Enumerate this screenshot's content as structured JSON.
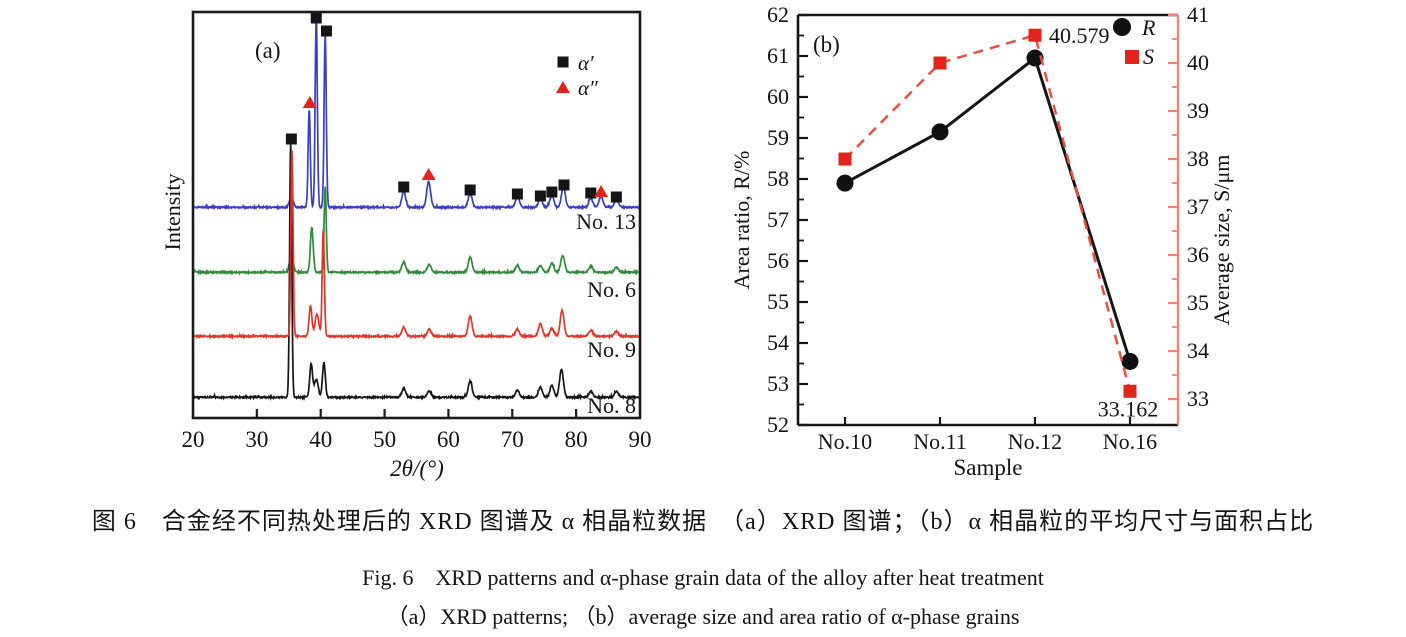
{
  "figure": {
    "caption_line1": "图 6　合金经不同热处理后的 XRD 图谱及 α 相晶粒数据　（a）XRD 图谱；（b）α 相晶粒的平均尺寸与面积占比",
    "caption_line2": "Fig. 6　XRD patterns and α-phase grain data of the alloy after heat treatment",
    "caption_line3": "（a）XRD patterns; （b）average size and area ratio of α-phase grains"
  },
  "chart_data": [
    {
      "panel": "a",
      "type": "line",
      "panel_label": "(a)",
      "xlabel": "2θ/(°)",
      "ylabel": "Intensity",
      "xlim": [
        20,
        90
      ],
      "xticks": [
        20,
        30,
        40,
        50,
        60,
        70,
        80,
        90
      ],
      "grid": false,
      "legend": {
        "position": "top-right",
        "entries": [
          {
            "label": "α′",
            "marker": "square",
            "color": "#151515"
          },
          {
            "label": "α″",
            "marker": "triangle",
            "color": "#e0251c"
          }
        ]
      },
      "series": [
        {
          "name": "No. 13",
          "color": "#3a3fbf",
          "peaks": [
            [
              35.4,
              10
            ],
            [
              38.2,
              98
            ],
            [
              39.3,
              190
            ],
            [
              40.7,
              172
            ],
            [
              53.0,
              16
            ],
            [
              56.9,
              26
            ],
            [
              63.4,
              14
            ],
            [
              70.8,
              11
            ],
            [
              74.4,
              9
            ],
            [
              76.2,
              12
            ],
            [
              78.0,
              21
            ],
            [
              82.3,
              9
            ],
            [
              83.9,
              11
            ],
            [
              86.3,
              8
            ]
          ]
        },
        {
          "name": "No. 6",
          "color": "#2e8b3a",
          "peaks": [
            [
              35.4,
              16
            ],
            [
              38.6,
              45
            ],
            [
              40.7,
              85
            ],
            [
              53.0,
              10
            ],
            [
              57.0,
              8
            ],
            [
              63.4,
              15
            ],
            [
              70.8,
              7
            ],
            [
              74.4,
              7
            ],
            [
              76.2,
              9
            ],
            [
              77.9,
              17
            ],
            [
              82.3,
              6
            ],
            [
              86.3,
              5
            ]
          ]
        },
        {
          "name": "No. 9",
          "color": "#e0352a",
          "peaks": [
            [
              35.5,
              187
            ],
            [
              38.4,
              30
            ],
            [
              39.4,
              22
            ],
            [
              40.4,
              107
            ],
            [
              53.0,
              9
            ],
            [
              57.0,
              7
            ],
            [
              63.4,
              20
            ],
            [
              70.8,
              7
            ],
            [
              74.4,
              13
            ],
            [
              76.2,
              8
            ],
            [
              77.8,
              26
            ],
            [
              82.3,
              6
            ],
            [
              86.3,
              5
            ]
          ]
        },
        {
          "name": "No. 8",
          "color": "#151515",
          "peaks": [
            [
              35.3,
              253
            ],
            [
              38.5,
              33
            ],
            [
              39.3,
              18
            ],
            [
              40.5,
              35
            ],
            [
              53.0,
              9
            ],
            [
              57.0,
              6
            ],
            [
              63.4,
              16
            ],
            [
              70.8,
              7
            ],
            [
              74.4,
              10
            ],
            [
              76.2,
              12
            ],
            [
              77.7,
              28
            ],
            [
              82.3,
              6
            ],
            [
              86.3,
              6
            ]
          ]
        }
      ],
      "peak_markers": [
        {
          "x": 35.4,
          "y": 139,
          "type": "square"
        },
        {
          "x": 38.3,
          "y": 103,
          "type": "triangle"
        },
        {
          "x": 39.3,
          "y": 18,
          "type": "square"
        },
        {
          "x": 40.9,
          "y": 31,
          "type": "square"
        },
        {
          "x": 53.0,
          "y": 187,
          "type": "square"
        },
        {
          "x": 56.9,
          "y": 175,
          "type": "triangle"
        },
        {
          "x": 63.4,
          "y": 190,
          "type": "square"
        },
        {
          "x": 70.8,
          "y": 194,
          "type": "square"
        },
        {
          "x": 74.4,
          "y": 196,
          "type": "square"
        },
        {
          "x": 76.2,
          "y": 192,
          "type": "square"
        },
        {
          "x": 78.1,
          "y": 185,
          "type": "square"
        },
        {
          "x": 82.3,
          "y": 193,
          "type": "square"
        },
        {
          "x": 83.9,
          "y": 192,
          "type": "triangle"
        },
        {
          "x": 86.3,
          "y": 197,
          "type": "square"
        }
      ]
    },
    {
      "panel": "b",
      "type": "line",
      "panel_label": "(b)",
      "xlabel": "Sample",
      "categories": [
        "No.10",
        "No.11",
        "No.12",
        "No.16"
      ],
      "left_axis": {
        "label": "Area ratio, R/%",
        "min": 52,
        "max": 62,
        "ticks": [
          52,
          53,
          54,
          55,
          56,
          57,
          58,
          59,
          60,
          61,
          62
        ],
        "minor_step": 0.5,
        "color": "#151515"
      },
      "right_axis": {
        "label": "Average size, S/μm",
        "min": 32.46,
        "max": 41,
        "ticks": [
          33,
          34,
          35,
          36,
          37,
          38,
          39,
          40,
          41
        ],
        "minor_step": 0.5,
        "color": "#ef8472"
      },
      "series": [
        {
          "name": "R",
          "axis": "left",
          "marker": "circle",
          "line": "solid",
          "color": "#151515",
          "marker_color": "#111111",
          "values": [
            57.9,
            59.15,
            60.95,
            53.55
          ]
        },
        {
          "name": "S",
          "axis": "right",
          "marker": "square",
          "line": "dashed",
          "color": "#e85043",
          "marker_color": "#e2241c",
          "values": [
            38.0,
            40.0,
            40.579,
            33.162
          ]
        }
      ],
      "annotations": [
        {
          "text": "40.579",
          "series": "S",
          "category": "No.12",
          "placement": "right"
        },
        {
          "text": "33.162",
          "series": "S",
          "category": "No.16",
          "placement": "below"
        }
      ],
      "legend": {
        "position": "top-right",
        "entries": [
          {
            "label": "R",
            "marker": "circle",
            "color": "#111111"
          },
          {
            "label": "S",
            "marker": "square",
            "color": "#e2241c"
          }
        ]
      }
    }
  ]
}
